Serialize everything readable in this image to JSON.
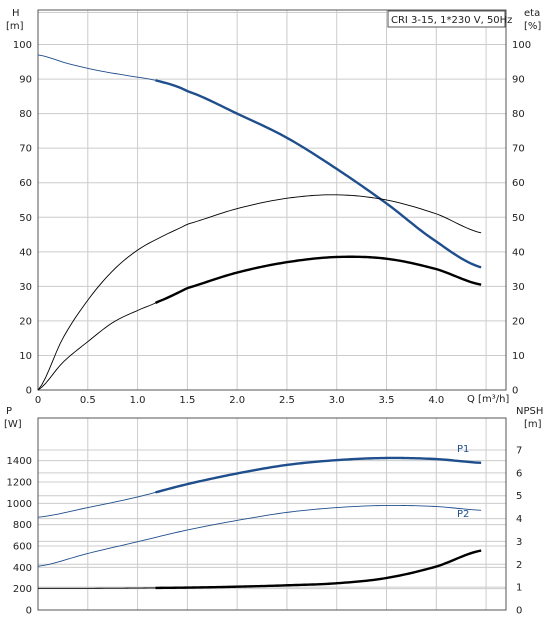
{
  "chart_data": [
    {
      "type": "line",
      "panel": "head-efficiency",
      "title": "CRI 3-15, 1*230 V, 50Hz",
      "ylabel_left": "H\n[m]",
      "ylabel_right": "eta\n[%]",
      "xlabel": "Q [m³/h]",
      "xlim": [
        0,
        4.7
      ],
      "ylim": [
        0,
        110
      ],
      "x_ticks": [
        "0",
        "0.5",
        "1.0",
        "1.5",
        "2.0",
        "2.5",
        "3.0",
        "3.5",
        "4.0"
      ],
      "y_ticks_left": [
        "0",
        "10",
        "20",
        "30",
        "40",
        "50",
        "60",
        "70",
        "80",
        "90",
        "100"
      ],
      "y_ticks_right": [
        "0",
        "10",
        "20",
        "30",
        "40",
        "50",
        "60",
        "70",
        "80",
        "90",
        "100"
      ],
      "grid": true,
      "series": [
        {
          "role": "head",
          "color": "#1f4e8c",
          "axis": "left",
          "x": [
            0,
            0.3,
            0.6,
            0.9,
            1.2,
            1.5,
            2.0,
            2.5,
            3.0,
            3.5,
            4.0,
            4.45
          ],
          "y": [
            97,
            94.5,
            92.5,
            91,
            89.5,
            86.5,
            80,
            73,
            64,
            54,
            43,
            35.5
          ],
          "bold_range": [
            1.18,
            4.45
          ]
        },
        {
          "role": "eta_thin",
          "color": "#000000",
          "axis": "right",
          "x": [
            0,
            0.25,
            0.5,
            0.75,
            1.0,
            1.25,
            1.5,
            2.0,
            2.5,
            3.0,
            3.5,
            4.0,
            4.45
          ],
          "y": [
            0,
            15,
            26,
            34.5,
            40.5,
            44.5,
            48,
            52.5,
            55.5,
            56.5,
            55,
            51,
            45.5
          ]
        },
        {
          "role": "eta_bold",
          "color": "#000000",
          "axis": "right",
          "x": [
            0,
            0.25,
            0.5,
            0.75,
            1.0,
            1.2,
            1.5,
            2.0,
            2.5,
            3.0,
            3.5,
            4.0,
            4.45
          ],
          "y": [
            0,
            8,
            14,
            19.5,
            23,
            25.5,
            29.5,
            34,
            37,
            38.5,
            38,
            35,
            30.5
          ],
          "bold_range": [
            1.18,
            4.45
          ]
        }
      ]
    },
    {
      "type": "line",
      "panel": "power-npsh",
      "ylabel_left": "P\n[W]",
      "ylabel_right": "NPSH\n[m]",
      "xlim": [
        0,
        4.7
      ],
      "ylim": [
        0,
        1800
      ],
      "ylim_right": [
        0,
        8.4
      ],
      "y_ticks_left": [
        "0",
        "200",
        "400",
        "600",
        "800",
        "1000",
        "1200",
        "1400"
      ],
      "y_ticks_right": [
        "0",
        "1",
        "2",
        "3",
        "4",
        "5",
        "6",
        "7"
      ],
      "grid": true,
      "series": [
        {
          "name": "P1",
          "color": "#1f4e8c",
          "axis": "left",
          "x": [
            0,
            0.5,
            1.0,
            1.5,
            2.0,
            2.5,
            3.0,
            3.5,
            4.0,
            4.45
          ],
          "y": [
            870,
            960,
            1060,
            1180,
            1280,
            1360,
            1405,
            1425,
            1415,
            1380
          ],
          "bold_range": [
            1.18,
            4.45
          ]
        },
        {
          "name": "P2",
          "color": "#1f4e8c",
          "axis": "left",
          "x": [
            0,
            0.5,
            1.0,
            1.5,
            2.0,
            2.5,
            3.0,
            3.5,
            4.0,
            4.45
          ],
          "y": [
            410,
            530,
            640,
            750,
            840,
            915,
            960,
            980,
            970,
            935
          ]
        },
        {
          "role": "npsh",
          "color": "#000000",
          "axis": "right",
          "x": [
            0,
            0.5,
            1.0,
            1.5,
            2.0,
            2.5,
            3.0,
            3.5,
            4.0,
            4.45
          ],
          "y": [
            0.95,
            0.95,
            0.96,
            0.98,
            1.02,
            1.08,
            1.17,
            1.4,
            1.9,
            2.6
          ],
          "bold_range": [
            1.18,
            4.45
          ]
        }
      ]
    }
  ]
}
